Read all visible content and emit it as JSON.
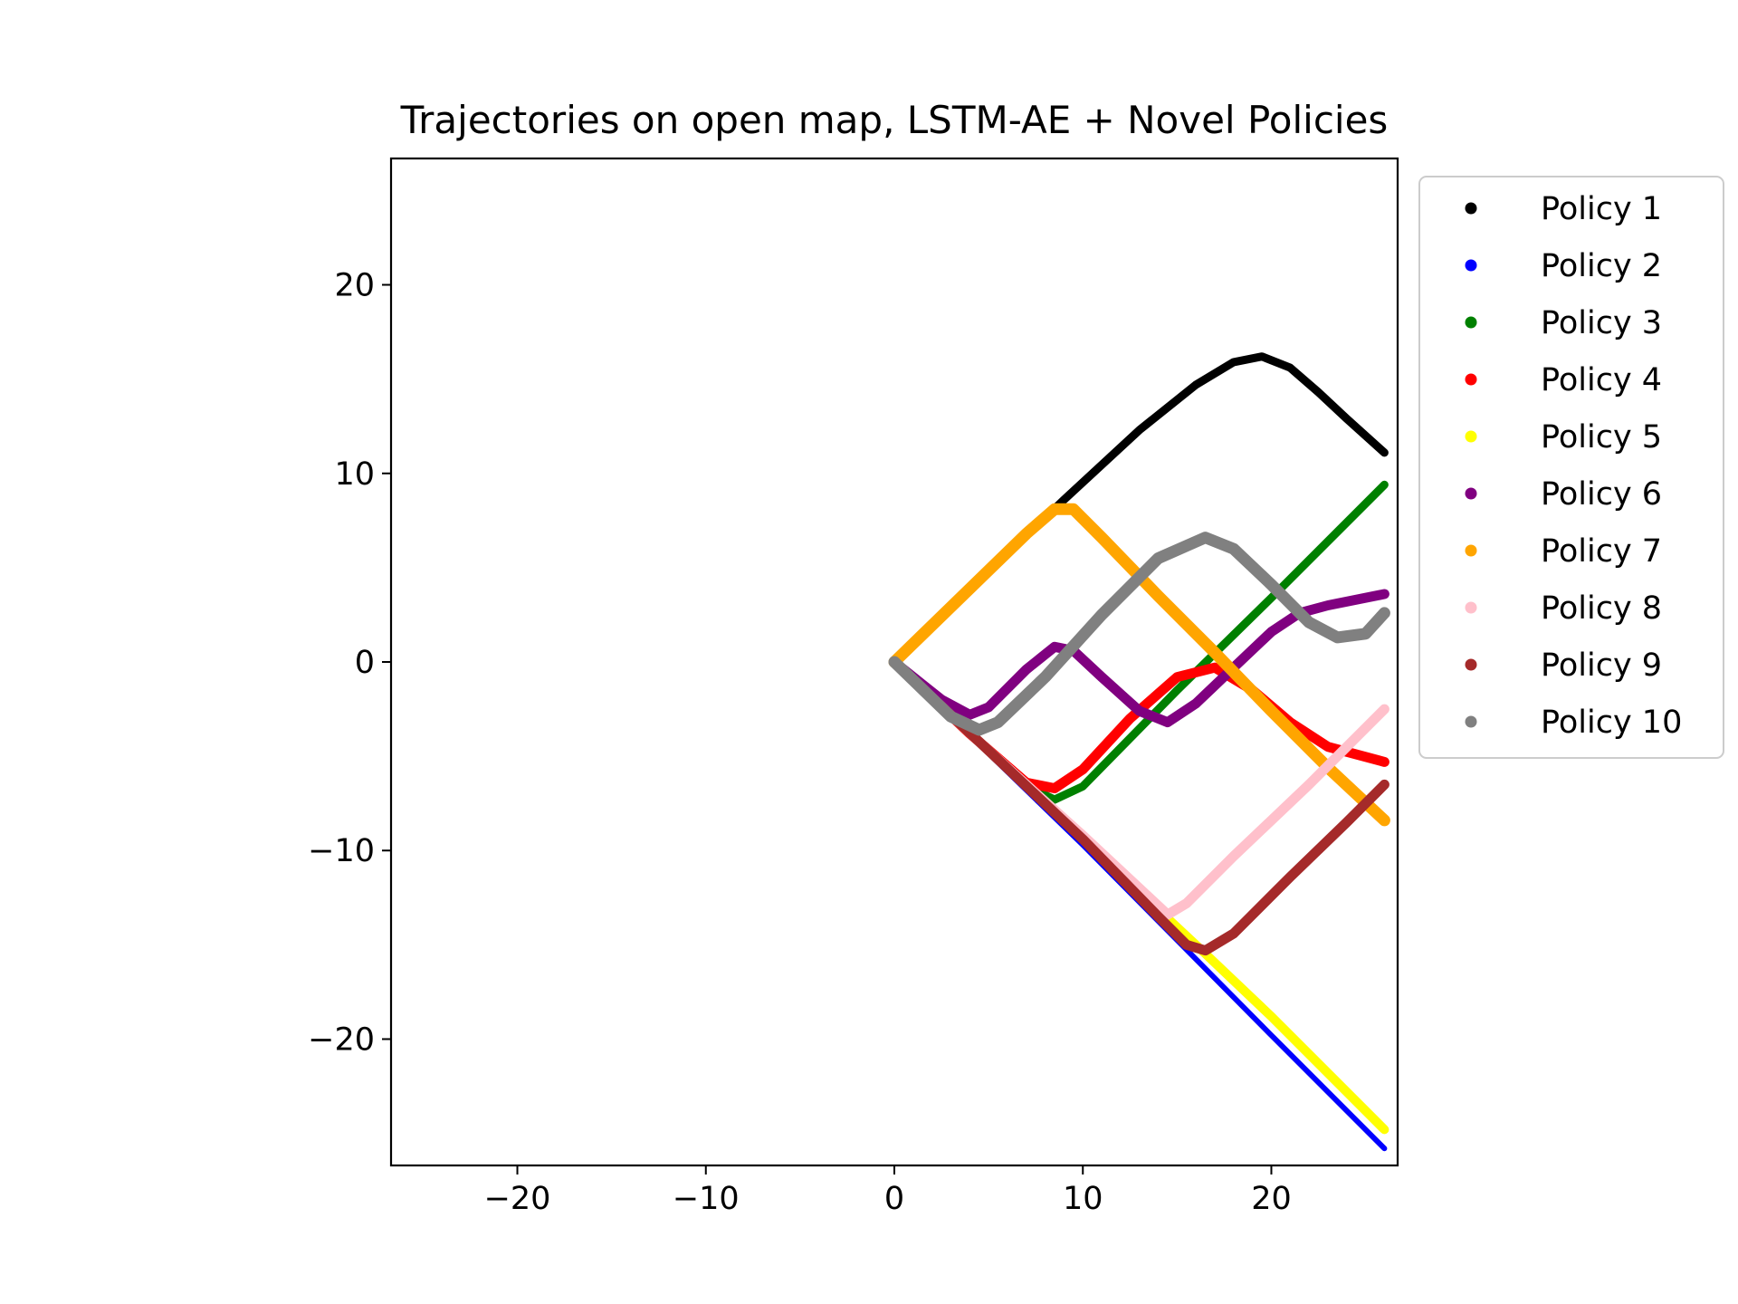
{
  "chart_data": {
    "type": "scatter",
    "title": "Trajectories on open map, LSTM-AE + Novel Policies",
    "xlabel": "",
    "ylabel": "",
    "xlim": [
      -26.7,
      26.7
    ],
    "ylim": [
      -26.7,
      26.7
    ],
    "xticks": [
      -20,
      -10,
      0,
      10,
      20
    ],
    "yticks": [
      -20,
      -10,
      0,
      10,
      20
    ],
    "xtick_labels": [
      "−20",
      "−10",
      "0",
      "10",
      "20"
    ],
    "ytick_labels": [
      "−20",
      "−10",
      "0",
      "10",
      "20"
    ],
    "grid": false,
    "legend_position": "outside-right-top",
    "series": [
      {
        "name": "Policy 1",
        "color": "#000000",
        "width": 9,
        "points": [
          [
            0,
            0
          ],
          [
            9,
            8.6
          ],
          [
            13,
            12.3
          ],
          [
            16,
            14.7
          ],
          [
            18,
            15.9
          ],
          [
            19.5,
            16.2
          ],
          [
            21,
            15.6
          ],
          [
            22.5,
            14.3
          ],
          [
            24,
            12.9
          ],
          [
            26,
            11.1
          ]
        ]
      },
      {
        "name": "Policy 2",
        "color": "#0000ff",
        "width": 6,
        "points": [
          [
            0,
            0
          ],
          [
            10,
            -9.7
          ],
          [
            20,
            -19.8
          ],
          [
            26,
            -25.8
          ]
        ]
      },
      {
        "name": "Policy 3",
        "color": "#008000",
        "width": 9,
        "points": [
          [
            0,
            0
          ],
          [
            4,
            -3.8
          ],
          [
            7,
            -6.6
          ],
          [
            8.5,
            -7.3
          ],
          [
            10,
            -6.6
          ],
          [
            15,
            -1.5
          ],
          [
            20,
            3.4
          ],
          [
            26,
            9.4
          ]
        ]
      },
      {
        "name": "Policy 4",
        "color": "#ff0000",
        "width": 11,
        "points": [
          [
            0,
            0
          ],
          [
            4,
            -3.8
          ],
          [
            7,
            -6.4
          ],
          [
            8.5,
            -6.7
          ],
          [
            10,
            -5.7
          ],
          [
            12.5,
            -3
          ],
          [
            15,
            -0.8
          ],
          [
            17,
            -0.3
          ],
          [
            19,
            -1.5
          ],
          [
            21,
            -3.2
          ],
          [
            23,
            -4.5
          ],
          [
            26,
            -5.3
          ]
        ]
      },
      {
        "name": "Policy 5",
        "color": "#ffff00",
        "width": 10,
        "points": [
          [
            0,
            0
          ],
          [
            10,
            -9.4
          ],
          [
            16,
            -15
          ],
          [
            20,
            -18.8
          ],
          [
            26,
            -24.8
          ]
        ]
      },
      {
        "name": "Policy 6",
        "color": "#800080",
        "width": 11,
        "points": [
          [
            0,
            0
          ],
          [
            2.5,
            -2
          ],
          [
            4,
            -2.8
          ],
          [
            5,
            -2.4
          ],
          [
            7,
            -0.4
          ],
          [
            8.5,
            0.8
          ],
          [
            9.5,
            0.6
          ],
          [
            11,
            -0.8
          ],
          [
            13,
            -2.6
          ],
          [
            14.5,
            -3.2
          ],
          [
            16,
            -2.2
          ],
          [
            18,
            -0.3
          ],
          [
            20,
            1.6
          ],
          [
            21.5,
            2.6
          ],
          [
            23,
            3
          ],
          [
            26,
            3.6
          ]
        ]
      },
      {
        "name": "Policy 7",
        "color": "#ffa500",
        "width": 13,
        "points": [
          [
            0,
            0
          ],
          [
            7,
            6.8
          ],
          [
            8.5,
            8.1
          ],
          [
            9.5,
            8.1
          ],
          [
            11,
            6.6
          ],
          [
            14,
            3.5
          ],
          [
            17,
            0.5
          ],
          [
            20,
            -2.6
          ],
          [
            23,
            -5.6
          ],
          [
            26,
            -8.4
          ]
        ]
      },
      {
        "name": "Policy 8",
        "color": "#ffc0cb",
        "width": 11,
        "points": [
          [
            0,
            0
          ],
          [
            5,
            -4.7
          ],
          [
            10,
            -9.2
          ],
          [
            13,
            -12
          ],
          [
            14.5,
            -13.4
          ],
          [
            15.5,
            -12.8
          ],
          [
            18,
            -10.3
          ],
          [
            22,
            -6.5
          ],
          [
            26,
            -2.5
          ]
        ]
      },
      {
        "name": "Policy 9",
        "color": "#a52a2a",
        "width": 11,
        "points": [
          [
            0,
            0
          ],
          [
            5,
            -4.7
          ],
          [
            10,
            -9.4
          ],
          [
            14,
            -13.5
          ],
          [
            15.5,
            -15
          ],
          [
            16.5,
            -15.3
          ],
          [
            18,
            -14.4
          ],
          [
            21,
            -11.4
          ],
          [
            24,
            -8.5
          ],
          [
            26,
            -6.5
          ]
        ]
      },
      {
        "name": "Policy 10",
        "color": "#808080",
        "width": 13,
        "points": [
          [
            0,
            0
          ],
          [
            3,
            -2.9
          ],
          [
            4.5,
            -3.6
          ],
          [
            5.5,
            -3.2
          ],
          [
            8,
            -0.8
          ],
          [
            11,
            2.5
          ],
          [
            14,
            5.5
          ],
          [
            16.5,
            6.6
          ],
          [
            18,
            6
          ],
          [
            20,
            4.1
          ],
          [
            22,
            2.1
          ],
          [
            23.5,
            1.3
          ],
          [
            25,
            1.5
          ],
          [
            26,
            2.6
          ]
        ]
      }
    ]
  }
}
